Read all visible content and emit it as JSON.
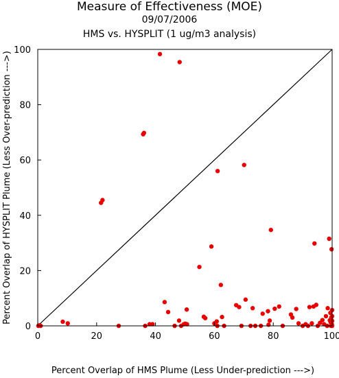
{
  "chart_data": {
    "type": "scatter",
    "title": "Measure of Effectiveness (MOE)",
    "subtitle_date": "09/07/2006",
    "subtitle": "HMS vs. HYSPLIT  (1 ug/m3 analysis)",
    "xlabel": "Percent Overlap of HMS Plume (Less Under-prediction --->)",
    "ylabel": "Percent Overlap of HYSPLIT Plume (Less Over-prediction --->)",
    "xlim": [
      0,
      100
    ],
    "ylim": [
      0,
      100
    ],
    "xticks": [
      0,
      20,
      40,
      60,
      80,
      100
    ],
    "yticks": [
      0,
      20,
      40,
      60,
      80,
      100
    ],
    "reference_line": {
      "from": [
        0,
        0
      ],
      "to": [
        100,
        100
      ],
      "color": "#000000"
    },
    "grid": false,
    "marker_color": "#e80000",
    "points": [
      [
        0.2,
        0
      ],
      [
        0.6,
        0.2
      ],
      [
        1.0,
        0
      ],
      [
        8.5,
        1.5
      ],
      [
        10.2,
        0.9
      ],
      [
        21.5,
        44.5
      ],
      [
        22.0,
        45.5
      ],
      [
        27.5,
        0
      ],
      [
        35.8,
        69.3
      ],
      [
        36.1,
        69.8
      ],
      [
        36.5,
        0
      ],
      [
        38.0,
        0.6
      ],
      [
        39.0,
        0.6
      ],
      [
        41.5,
        98.3
      ],
      [
        48.2,
        95.4
      ],
      [
        43.1,
        8.6
      ],
      [
        44.3,
        5.0
      ],
      [
        46.5,
        0
      ],
      [
        48.0,
        1.9
      ],
      [
        48.7,
        0
      ],
      [
        49.6,
        0.6
      ],
      [
        50.1,
        0.8
      ],
      [
        50.7,
        0.6
      ],
      [
        50.6,
        5.9
      ],
      [
        54.9,
        21.3
      ],
      [
        56.4,
        3.3
      ],
      [
        56.9,
        2.8
      ],
      [
        59.0,
        28.7
      ],
      [
        60.0,
        0.9
      ],
      [
        60.8,
        1.6
      ],
      [
        61.0,
        0
      ],
      [
        61.1,
        56.0
      ],
      [
        62.2,
        14.8
      ],
      [
        62.6,
        3.2
      ],
      [
        63.3,
        0
      ],
      [
        67.4,
        7.5
      ],
      [
        68.4,
        6.8
      ],
      [
        69.2,
        0
      ],
      [
        70.1,
        58.2
      ],
      [
        70.6,
        9.5
      ],
      [
        72.3,
        0
      ],
      [
        73.0,
        6.4
      ],
      [
        73.9,
        0
      ],
      [
        75.8,
        0
      ],
      [
        76.4,
        4.4
      ],
      [
        78.2,
        5.3
      ],
      [
        78.4,
        0.4
      ],
      [
        78.8,
        1.9
      ],
      [
        79.2,
        34.7
      ],
      [
        80.5,
        6.2
      ],
      [
        82.0,
        7.0
      ],
      [
        83.2,
        0
      ],
      [
        86.0,
        4.1
      ],
      [
        86.5,
        3.0
      ],
      [
        87.8,
        6.1
      ],
      [
        88.6,
        0.9
      ],
      [
        90.0,
        0
      ],
      [
        91.0,
        0.6
      ],
      [
        91.8,
        0
      ],
      [
        92.3,
        6.8
      ],
      [
        93.1,
        0.9
      ],
      [
        93.7,
        7.0
      ],
      [
        94.0,
        29.8
      ],
      [
        94.6,
        7.6
      ],
      [
        95.1,
        0
      ],
      [
        95.9,
        1.1
      ],
      [
        96.7,
        2.1
      ],
      [
        97.3,
        0.6
      ],
      [
        97.9,
        3.5
      ],
      [
        98.3,
        0
      ],
      [
        98.5,
        6.4
      ],
      [
        99.0,
        31.5
      ],
      [
        99.2,
        2.0
      ],
      [
        99.4,
        4.7
      ],
      [
        99.5,
        1.3
      ],
      [
        99.6,
        0
      ],
      [
        99.7,
        3.0
      ],
      [
        99.8,
        27.7
      ],
      [
        99.9,
        0.6
      ],
      [
        100,
        5.7
      ],
      [
        100,
        3.5
      ],
      [
        100,
        1.8
      ],
      [
        100,
        0
      ]
    ]
  }
}
